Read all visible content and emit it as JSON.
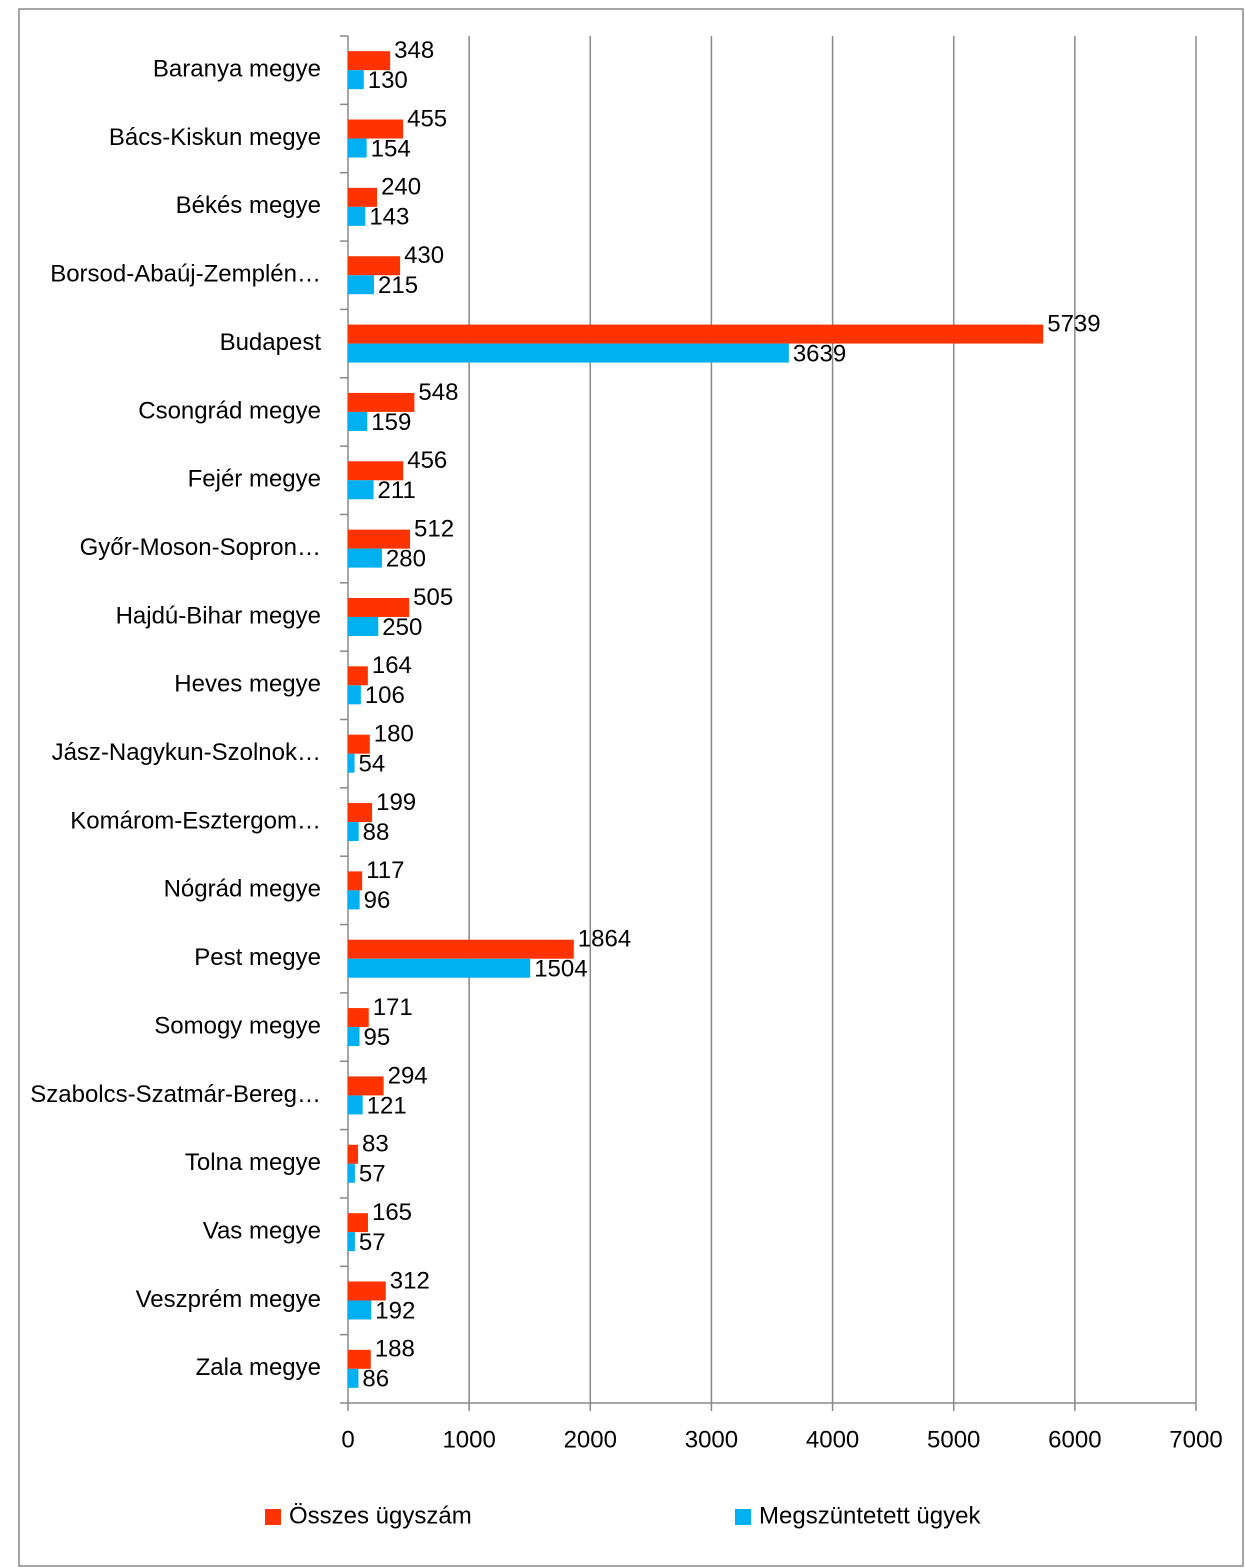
{
  "chart_data": {
    "type": "barh",
    "categories": [
      "Baranya megye",
      "Bács-Kiskun megye",
      "Békés megye",
      "Borsod-Abaúj-Zemplén…",
      "Budapest",
      "Csongrád megye",
      "Fejér megye",
      "Győr-Moson-Sopron…",
      "Hajdú-Bihar megye",
      "Heves megye",
      "Jász-Nagykun-Szolnok…",
      "Komárom-Esztergom…",
      "Nógrád megye",
      "Pest megye",
      "Somogy megye",
      "Szabolcs-Szatmár-Bereg…",
      "Tolna megye",
      "Vas megye",
      "Veszprém megye",
      "Zala megye"
    ],
    "series": [
      {
        "name": "Összes ügyszám",
        "color": "#ff3300",
        "values": [
          348,
          455,
          240,
          430,
          5739,
          548,
          456,
          512,
          505,
          164,
          180,
          199,
          117,
          1864,
          171,
          294,
          83,
          165,
          312,
          188
        ]
      },
      {
        "name": "Megszüntetett ügyek",
        "color": "#00b0f0",
        "values": [
          130,
          154,
          143,
          215,
          3639,
          159,
          211,
          280,
          250,
          106,
          54,
          88,
          96,
          1504,
          95,
          121,
          57,
          57,
          192,
          86
        ]
      }
    ],
    "xlim": [
      0,
      7000
    ],
    "xticks": [
      0,
      1000,
      2000,
      3000,
      4000,
      5000,
      6000,
      7000
    ],
    "grid": true,
    "legend": "bottom"
  }
}
